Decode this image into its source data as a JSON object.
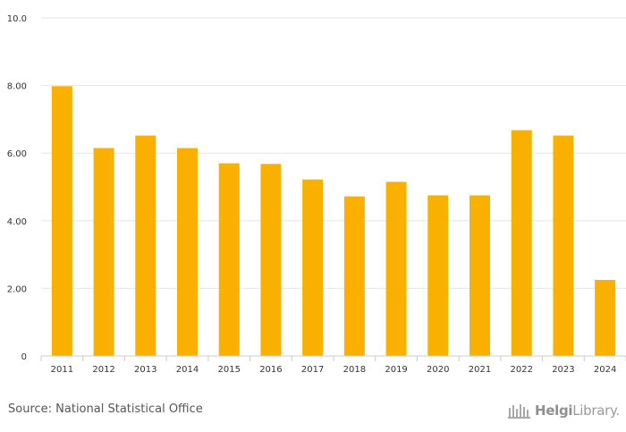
{
  "chart_data": {
    "type": "bar",
    "categories": [
      "2011",
      "2012",
      "2013",
      "2014",
      "2015",
      "2016",
      "2017",
      "2018",
      "2019",
      "2020",
      "2021",
      "2022",
      "2023",
      "2024"
    ],
    "values": [
      7.98,
      6.15,
      6.52,
      6.15,
      5.7,
      5.68,
      5.22,
      4.72,
      5.15,
      4.75,
      4.75,
      6.68,
      6.52,
      2.25
    ],
    "title": "",
    "xlabel": "",
    "ylabel": "",
    "ylim": [
      0,
      10
    ],
    "yticks": [
      0,
      2,
      4,
      6,
      8,
      10
    ],
    "ytick_labels": [
      "0",
      "2.00",
      "4.00",
      "6.00",
      "8.00",
      "10.0"
    ],
    "grid": true,
    "bar_color": "#f9b000"
  },
  "footer": {
    "source": "Source: National Statistical Office",
    "brand_part1": "Helgi",
    "brand_part2": "Library."
  },
  "colors": {
    "bar": "#f9b000",
    "grid": "#e6e6e6",
    "axis": "#cccccc",
    "tick_text": "#333333"
  }
}
